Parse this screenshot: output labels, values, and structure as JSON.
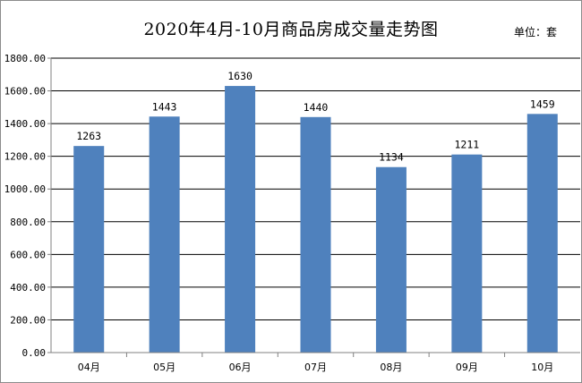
{
  "chart_data": {
    "type": "bar",
    "title": "2020年4月-10月商品房成交量走势图",
    "unit": "单位：套",
    "categories": [
      "04月",
      "05月",
      "06月",
      "07月",
      "08月",
      "09月",
      "10月"
    ],
    "series": [
      {
        "values": [
          1263,
          1443,
          1630,
          1440,
          1134,
          1211,
          1459
        ]
      }
    ],
    "data_labels": [
      "1263",
      "1443",
      "1630",
      "1440",
      "1134",
      "1211",
      "1459"
    ],
    "y_ticks": [
      "0.00",
      "200.00",
      "400.00",
      "600.00",
      "800.00",
      "1000.00",
      "1200.00",
      "1400.00",
      "1600.00",
      "1800.00"
    ],
    "ylim": [
      0,
      1800
    ],
    "grid": true,
    "legend": "none",
    "colors": {
      "bar": "#4f81bd",
      "grid": "#000000",
      "axis": "#808080"
    }
  }
}
